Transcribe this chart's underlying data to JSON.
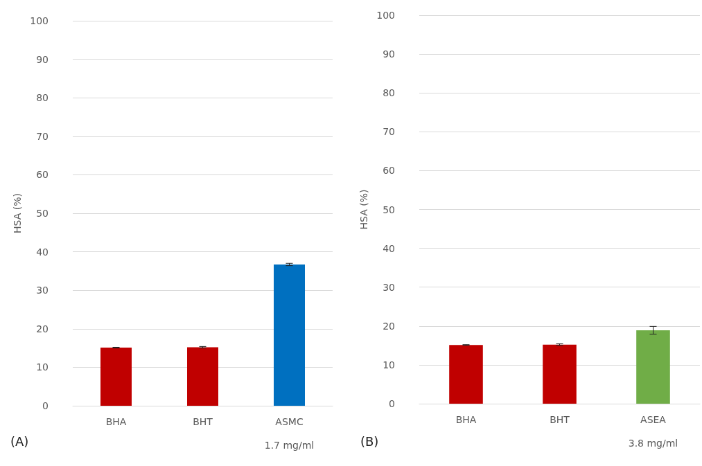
{
  "chart_data": [
    {
      "type": "bar",
      "title": "(A)",
      "ylabel": "HSA (%)",
      "categories": [
        "BHA",
        "BHT",
        "ASMC\n1.7 mg/ml"
      ],
      "values": [
        15.1,
        15.2,
        36.7
      ],
      "colors": [
        "#c00000",
        "#c00000",
        "#0070c0"
      ],
      "errors": [
        0.1,
        0.2,
        0.3
      ],
      "ylim": [
        0,
        100
      ],
      "yticks": [
        0,
        10,
        20,
        30,
        40,
        50,
        60,
        70,
        80,
        90,
        100
      ],
      "grid": "y"
    },
    {
      "type": "bar",
      "title": "(B)",
      "ylabel": "HSA (%)",
      "categories": [
        "BHA",
        "BHT",
        "ASEA\n3.8 mg/ml"
      ],
      "values": [
        15.1,
        15.2,
        18.9
      ],
      "colors": [
        "#c00000",
        "#c00000",
        "#70ad47"
      ],
      "errors": [
        0.1,
        0.2,
        1.0
      ],
      "ylim": [
        0,
        100
      ],
      "yticks": [
        0,
        10,
        20,
        30,
        40,
        50,
        60,
        70,
        80,
        90,
        100
      ],
      "grid": "y"
    }
  ]
}
